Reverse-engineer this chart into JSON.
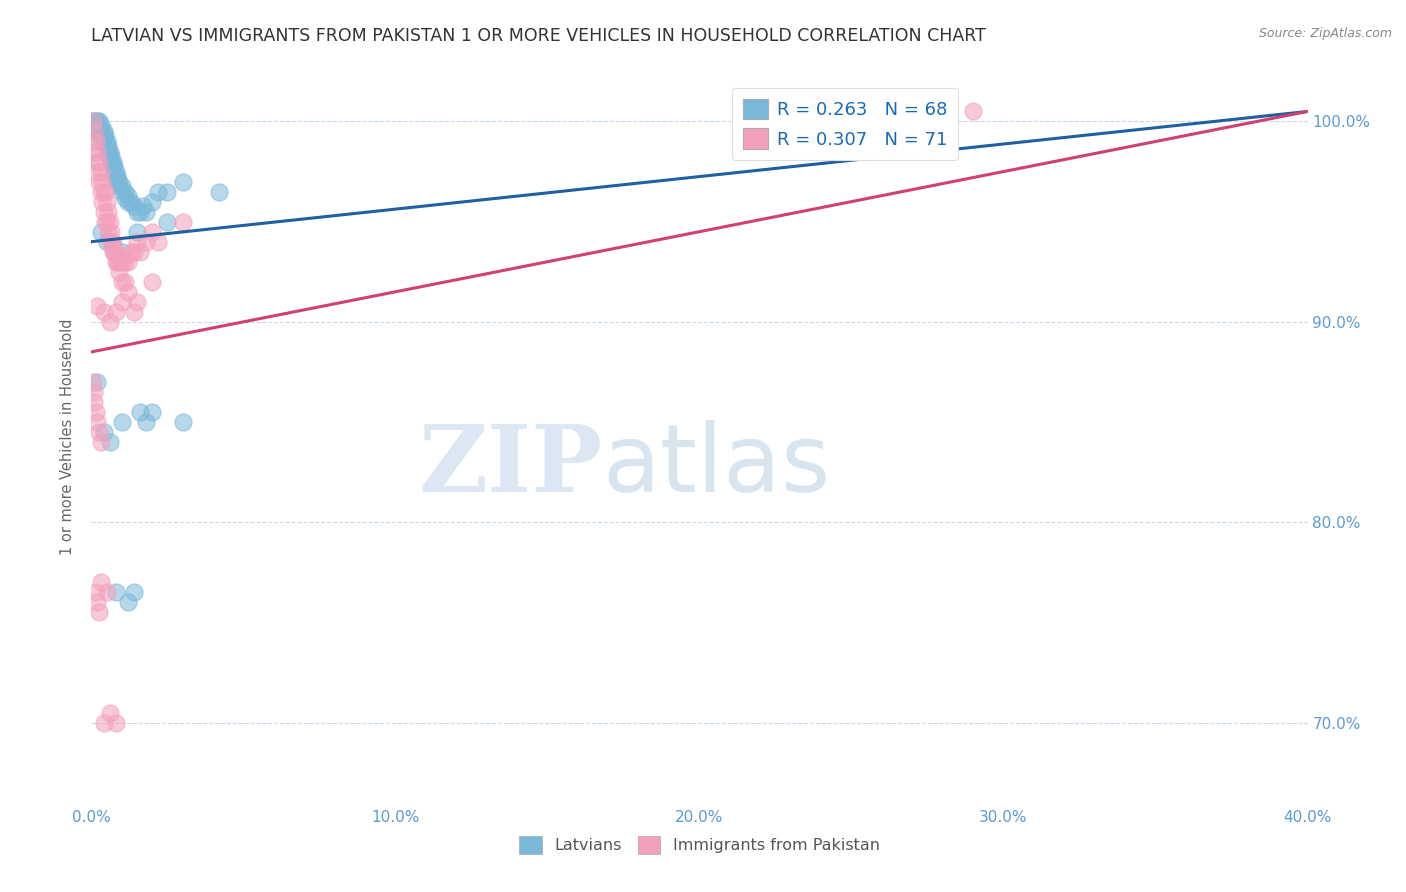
{
  "title": "LATVIAN VS IMMIGRANTS FROM PAKISTAN 1 OR MORE VEHICLES IN HOUSEHOLD CORRELATION CHART",
  "source": "Source: ZipAtlas.com",
  "ylabel": "1 or more Vehicles in Household",
  "xlabel": "",
  "xlim": [
    0.0,
    40.0
  ],
  "ylim": [
    66.0,
    102.5
  ],
  "yticks": [
    70.0,
    80.0,
    90.0,
    100.0
  ],
  "xticks": [
    0.0,
    10.0,
    20.0,
    30.0,
    40.0
  ],
  "latvian_color": "#7ab8d9",
  "pakistan_color": "#f4a0bb",
  "trend_blue": "#2060a0",
  "trend_pink": "#d04070",
  "R_latvian": 0.263,
  "N_latvian": 68,
  "R_pakistan": 0.307,
  "N_pakistan": 71,
  "background_color": "#ffffff",
  "grid_color": "#c8d8e8",
  "title_fontsize": 12.5,
  "axis_label_color": "#5b9bd5",
  "watermark_zip": "ZIP",
  "watermark_atlas": "atlas",
  "legend_latvian": "Latvians",
  "legend_pakistan": "Immigrants from Pakistan",
  "blue_trend_x0": 0.0,
  "blue_trend_y0": 94.0,
  "blue_trend_x1": 40.0,
  "blue_trend_y1": 100.5,
  "pink_trend_x0": 0.0,
  "pink_trend_y0": 88.5,
  "pink_trend_x1": 40.0,
  "pink_trend_y1": 100.5,
  "latvian_x": [
    0.05,
    0.1,
    0.15,
    0.15,
    0.2,
    0.2,
    0.25,
    0.25,
    0.3,
    0.3,
    0.35,
    0.35,
    0.4,
    0.4,
    0.45,
    0.45,
    0.5,
    0.5,
    0.55,
    0.55,
    0.6,
    0.6,
    0.65,
    0.65,
    0.7,
    0.7,
    0.75,
    0.75,
    0.8,
    0.8,
    0.85,
    0.85,
    0.9,
    0.9,
    1.0,
    1.0,
    1.1,
    1.1,
    1.2,
    1.2,
    1.3,
    1.4,
    1.5,
    1.6,
    1.7,
    1.8,
    2.0,
    2.2,
    2.5,
    3.0,
    0.3,
    0.5,
    0.7,
    1.0,
    1.5,
    2.5,
    4.2,
    0.2,
    0.4,
    0.6,
    0.8,
    1.0,
    1.2,
    1.4,
    1.6,
    1.8,
    2.0,
    3.0
  ],
  "latvian_y": [
    100.0,
    100.0,
    100.0,
    99.5,
    100.0,
    99.5,
    100.0,
    99.5,
    99.8,
    99.5,
    99.5,
    99.0,
    99.5,
    99.2,
    99.0,
    99.3,
    98.8,
    99.0,
    98.5,
    98.8,
    98.5,
    98.2,
    98.0,
    98.3,
    97.8,
    98.0,
    97.5,
    97.8,
    97.5,
    97.2,
    97.0,
    97.3,
    96.8,
    97.0,
    96.5,
    96.8,
    96.5,
    96.2,
    96.0,
    96.3,
    96.0,
    95.8,
    95.5,
    95.5,
    95.8,
    95.5,
    96.0,
    96.5,
    96.5,
    97.0,
    94.5,
    94.0,
    93.8,
    93.5,
    94.5,
    95.0,
    96.5,
    87.0,
    84.5,
    84.0,
    76.5,
    85.0,
    76.0,
    76.5,
    85.5,
    85.0,
    85.5,
    85.0
  ],
  "pakistan_x": [
    0.05,
    0.05,
    0.1,
    0.1,
    0.15,
    0.15,
    0.2,
    0.2,
    0.25,
    0.25,
    0.3,
    0.3,
    0.35,
    0.35,
    0.4,
    0.4,
    0.45,
    0.45,
    0.5,
    0.5,
    0.55,
    0.55,
    0.6,
    0.6,
    0.65,
    0.7,
    0.7,
    0.75,
    0.8,
    0.8,
    0.85,
    0.9,
    0.9,
    1.0,
    1.0,
    1.1,
    1.1,
    1.2,
    1.3,
    1.4,
    1.5,
    1.6,
    1.8,
    2.0,
    2.2,
    3.0,
    0.2,
    0.4,
    0.6,
    0.8,
    1.0,
    1.2,
    1.4,
    1.5,
    2.0,
    29.0,
    0.05,
    0.08,
    0.1,
    0.15,
    0.2,
    0.25,
    0.3,
    0.15,
    0.2,
    0.25,
    0.3,
    0.5,
    0.4,
    0.6,
    0.8
  ],
  "pakistan_y": [
    100.0,
    99.0,
    99.5,
    98.5,
    99.0,
    98.0,
    98.5,
    97.5,
    98.0,
    97.0,
    97.5,
    96.5,
    97.0,
    96.0,
    96.5,
    95.5,
    96.5,
    95.0,
    96.0,
    95.0,
    95.5,
    94.5,
    95.0,
    94.0,
    94.5,
    94.0,
    93.5,
    93.5,
    93.5,
    93.0,
    93.0,
    93.0,
    92.5,
    93.0,
    92.0,
    93.0,
    92.0,
    93.0,
    93.5,
    93.5,
    94.0,
    93.5,
    94.0,
    94.5,
    94.0,
    95.0,
    90.8,
    90.5,
    90.0,
    90.5,
    91.0,
    91.5,
    90.5,
    91.0,
    92.0,
    100.5,
    87.0,
    86.5,
    86.0,
    85.5,
    85.0,
    84.5,
    84.0,
    76.5,
    76.0,
    75.5,
    77.0,
    76.5,
    70.0,
    70.5,
    70.0
  ]
}
